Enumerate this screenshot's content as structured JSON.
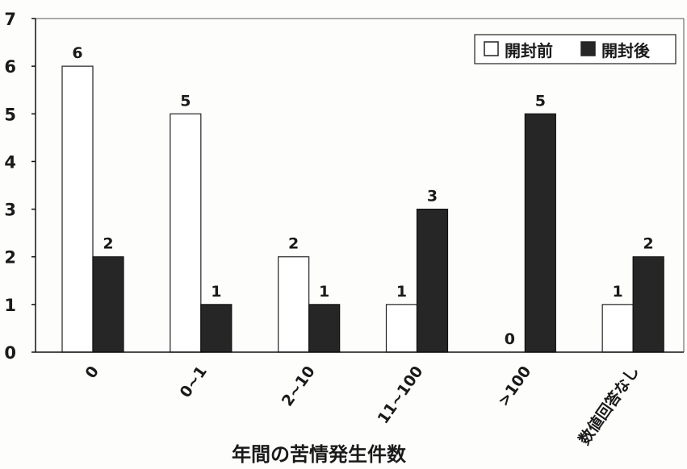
{
  "chart_data": {
    "type": "bar",
    "xlabel": "年間の苦情発生件数",
    "ylabel": "",
    "ylim": [
      0,
      7
    ],
    "yticks": [
      "0",
      "1",
      "2",
      "3",
      "4",
      "5",
      "6",
      "7"
    ],
    "categories": [
      "0",
      "0~1",
      "2~10",
      "11~100",
      ">100",
      "数値回答なし"
    ],
    "series": [
      {
        "name": "開封前",
        "values": [
          6,
          5,
          2,
          1,
          0,
          1
        ],
        "labels": [
          "6",
          "5",
          "2",
          "1",
          "0",
          "1"
        ],
        "color": "#ffffff"
      },
      {
        "name": "開封後",
        "values": [
          2,
          1,
          1,
          3,
          5,
          2
        ],
        "labels": [
          "2",
          "1",
          "1",
          "3",
          "5",
          "2"
        ],
        "color": "#262626"
      }
    ],
    "legend": "top-right",
    "grid": false
  }
}
